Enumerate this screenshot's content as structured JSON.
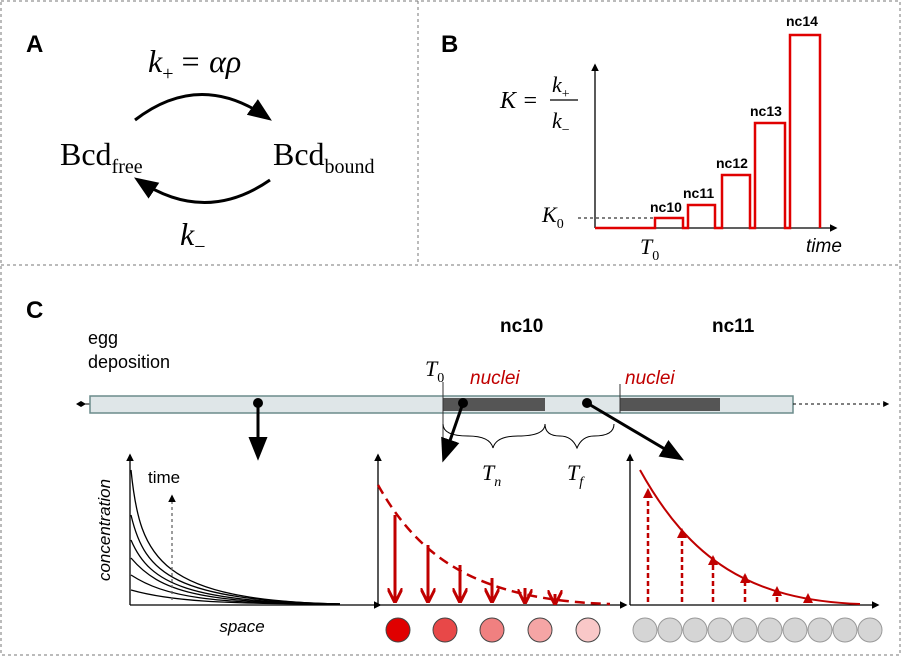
{
  "panel_a": {
    "label": "A",
    "rate_on": {
      "k": "k",
      "sub": "+",
      "rhs": "= αρ"
    },
    "free": {
      "base": "Bcd",
      "sub": "free"
    },
    "bound": {
      "base": "Bcd",
      "sub": "bound"
    },
    "rate_off": {
      "k": "k",
      "sub": "−"
    }
  },
  "panel_b": {
    "label": "B",
    "K": {
      "lhs": "K =",
      "num_k": "k",
      "num_sub": "+",
      "den_k": "k",
      "den_sub": "−"
    },
    "K0": {
      "base": "K",
      "sub": "0"
    },
    "T0": {
      "base": "T",
      "sub": "0"
    },
    "x_label": "time",
    "cycles": [
      "nc10",
      "nc11",
      "nc12",
      "nc13",
      "nc14"
    ]
  },
  "panel_c": {
    "label": "C",
    "egg_deposition": [
      "egg",
      "deposition"
    ],
    "cycles": [
      "nc10",
      "nc11"
    ],
    "T0": {
      "base": "T",
      "sub": "0"
    },
    "nuclei": [
      "nuclei",
      "nuclei"
    ],
    "Tn": {
      "base": "T",
      "sub": "n"
    },
    "Tf": {
      "base": "T",
      "sub": "f"
    },
    "time": "time",
    "y_label": "concentration",
    "x_label": "space"
  }
}
